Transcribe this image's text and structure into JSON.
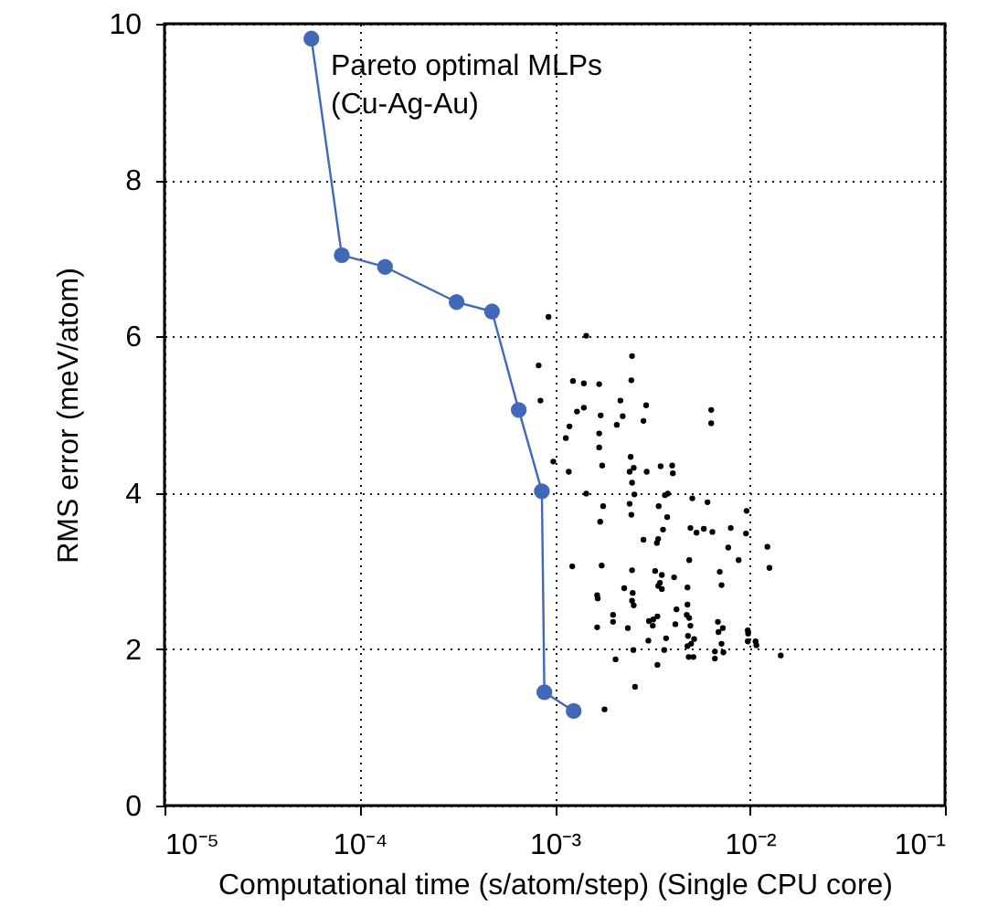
{
  "chart_data": {
    "type": "scatter",
    "xlabel": "Computational time (s/atom/step) (Single CPU core)",
    "ylabel": "RMS error (meV/atom)",
    "log": "x",
    "xlim": [
      1e-05,
      0.1
    ],
    "xticks": [
      {
        "value": 1e-05,
        "label": "10⁻⁵"
      },
      {
        "value": 0.0001,
        "label": "10⁻⁴"
      },
      {
        "value": 0.001,
        "label": "10⁻³"
      },
      {
        "value": 0.01,
        "label": "10⁻²"
      },
      {
        "value": 0.1,
        "label": "10⁻¹"
      }
    ],
    "ylim": [
      0,
      10
    ],
    "yticks": [
      0,
      2,
      4,
      6,
      8,
      10
    ],
    "grid": true,
    "series": [
      {
        "name": "Pareto optimal MLPs\n(Cu-Ag-Au)",
        "type": "line",
        "marker": "circle",
        "color": "#4169b8",
        "x": [
          5.66e-05,
          8.1e-05,
          0.000135,
          0.000314,
          0.000477,
          0.000654,
          0.000859,
          0.000885,
          0.00125
        ],
        "values": [
          9.81,
          7.04,
          6.89,
          6.44,
          6.32,
          5.06,
          4.02,
          1.45,
          1.21
        ]
      },
      {
        "marker": "circle",
        "color": "#000000",
        "x": [
          0.000929,
          0.00145,
          0.000827,
          0.00124,
          0.00141,
          0.00169,
          0.00249,
          0.00247,
          0.000845,
          0.00217,
          0.00141,
          0.0013,
          0.00294,
          0.00172,
          0.00223,
          0.00119,
          0.00208,
          0.00285,
          0.00634,
          0.00634,
          0.00114,
          0.00169,
          0.00169,
          0.000983,
          0.00245,
          0.00118,
          0.00175,
          0.00242,
          0.00254,
          0.00296,
          0.00349,
          0.004,
          0.00403,
          0.00249,
          0.00145,
          0.00256,
          0.00367,
          0.0038,
          0.00177,
          0.00242,
          0.00341,
          0.00507,
          0.00607,
          0.00247,
          0.00377,
          0.00171,
          0.00962,
          0.00496,
          0.00533,
          0.00581,
          0.00643,
          0.00798,
          0.00955,
          0.00359,
          0.00285,
          0.00339,
          0.00334,
          0.0123,
          0.00775,
          0.00123,
          0.00174,
          0.00489,
          0.00876,
          0.0126,
          0.00249,
          0.00327,
          0.00354,
          0.00409,
          0.00701,
          0.00346,
          0.00339,
          0.00227,
          0.00354,
          0.00479,
          0.00716,
          0.00165,
          0.00251,
          0.00166,
          0.00249,
          0.00254,
          0.00479,
          0.00421,
          0.00199,
          0.00336,
          0.00475,
          0.00489,
          0.00199,
          0.00304,
          0.0032,
          0.00318,
          0.00165,
          0.00237,
          0.00415,
          0.00496,
          0.00686,
          0.00727,
          0.00691,
          0.00976,
          0.0098,
          0.00372,
          0.00302,
          0.00482,
          0.00518,
          0.005,
          0.00716,
          0.00976,
          0.0107,
          0.0108,
          0.00205,
          0.00253,
          0.00364,
          0.00479,
          0.00486,
          0.00514,
          0.00662,
          0.00732,
          0.00662,
          0.0144,
          0.00336,
          0.00258,
          0.0018
        ],
        "values": [
          6.25,
          6.01,
          5.63,
          5.43,
          5.4,
          5.39,
          5.75,
          5.44,
          5.18,
          5.18,
          5.09,
          5.04,
          5.12,
          4.99,
          4.98,
          4.85,
          4.87,
          4.92,
          5.06,
          4.89,
          4.7,
          4.76,
          4.58,
          4.4,
          4.46,
          4.27,
          4.35,
          4.27,
          4.32,
          4.27,
          4.34,
          4.35,
          4.25,
          4.13,
          3.99,
          3.98,
          3.97,
          3.99,
          3.83,
          3.86,
          3.83,
          3.93,
          3.88,
          3.72,
          3.69,
          3.63,
          3.77,
          3.55,
          3.49,
          3.54,
          3.5,
          3.55,
          3.48,
          3.53,
          3.4,
          3.41,
          3.36,
          3.31,
          3.3,
          3.06,
          3.07,
          3.14,
          3.14,
          3.04,
          3.01,
          3.0,
          2.95,
          2.92,
          2.99,
          2.85,
          2.81,
          2.78,
          2.77,
          2.79,
          2.82,
          2.69,
          2.72,
          2.65,
          2.62,
          2.56,
          2.57,
          2.51,
          2.44,
          2.42,
          2.44,
          2.4,
          2.35,
          2.36,
          2.38,
          2.3,
          2.28,
          2.27,
          2.32,
          2.3,
          2.35,
          2.27,
          2.22,
          2.24,
          2.2,
          2.14,
          2.11,
          2.17,
          2.13,
          2.07,
          2.07,
          2.1,
          2.1,
          2.05,
          1.87,
          1.99,
          1.99,
          2.04,
          1.9,
          1.9,
          1.97,
          1.96,
          1.88,
          1.92,
          1.8,
          1.52,
          1.23
        ]
      }
    ]
  }
}
